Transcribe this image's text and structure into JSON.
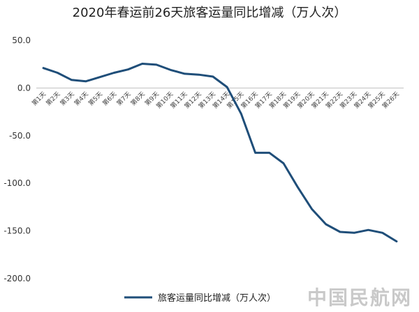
{
  "chart_data": {
    "type": "line",
    "title": "2020年春运前26天旅客运量同比增减（万人次）",
    "xlabel": "",
    "ylabel": "",
    "categories": [
      "第1天",
      "第2天",
      "第3天",
      "第4天",
      "第5天",
      "第6天",
      "第7天",
      "第8天",
      "第9天",
      "第10天",
      "第11天",
      "第12天",
      "第13天",
      "第14天",
      "第15天",
      "第16天",
      "第17天",
      "第18天",
      "第19天",
      "第20天",
      "第21天",
      "第22天",
      "第23天",
      "第24天",
      "第25天",
      "第26天"
    ],
    "series": [
      {
        "name": "旅客运量同比增减（万人次）",
        "color": "#1f4e79",
        "values": [
          21,
          16,
          8.5,
          7,
          11.5,
          16,
          19.5,
          25.5,
          24.5,
          19,
          15,
          14,
          12,
          1,
          -27,
          -68,
          -68,
          -79,
          -104,
          -127,
          -143,
          -151,
          -152,
          -149,
          -152,
          -161
        ]
      }
    ],
    "ylim": [
      -200,
      50
    ],
    "yticks": [
      "50.0",
      "0.0",
      "-50.0",
      "-100.0",
      "-150.0",
      "-200.0"
    ],
    "ytick_values": [
      50,
      0,
      -50,
      -100,
      -150,
      -200
    ],
    "grid": false,
    "legend_position": "bottom"
  },
  "watermark": "中国民航网"
}
